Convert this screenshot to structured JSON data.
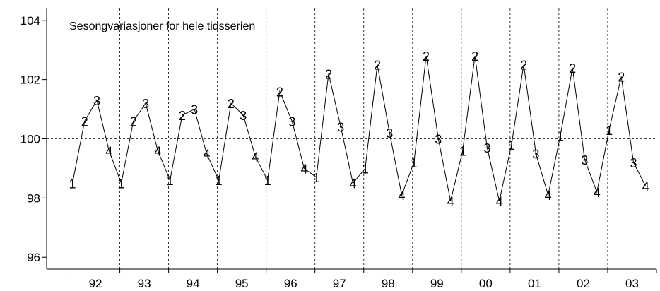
{
  "chart_data": {
    "type": "line",
    "title": "Sesongvariasjoner for hele tidsserien",
    "xlabel": "",
    "ylabel": "",
    "ylim": [
      95.6,
      104.4
    ],
    "yticks": [
      96,
      98,
      100,
      102,
      104
    ],
    "reference_line": 100,
    "grid": "vertical dashed separators between years; dashed horizontal line at 100",
    "years": [
      "92",
      "93",
      "94",
      "95",
      "96",
      "97",
      "98",
      "99",
      "00",
      "01",
      "02",
      "03"
    ],
    "quarter_markers": [
      "1",
      "2",
      "3",
      "4"
    ],
    "series": [
      {
        "values": [
          98.5,
          100.6,
          101.3,
          99.6,
          98.5,
          100.6,
          101.2,
          99.6,
          98.6,
          100.8,
          101.0,
          99.5,
          98.6,
          101.2,
          100.8,
          99.4,
          98.6,
          101.6,
          100.6,
          99.0,
          98.7,
          102.2,
          100.4,
          98.5,
          99.0,
          102.5,
          100.2,
          98.1,
          99.2,
          102.8,
          100.0,
          97.9,
          99.6,
          102.8,
          99.7,
          97.9,
          99.8,
          102.5,
          99.5,
          98.1,
          100.1,
          102.4,
          99.3,
          98.2,
          100.3,
          102.1,
          99.2,
          98.4
        ]
      }
    ]
  }
}
